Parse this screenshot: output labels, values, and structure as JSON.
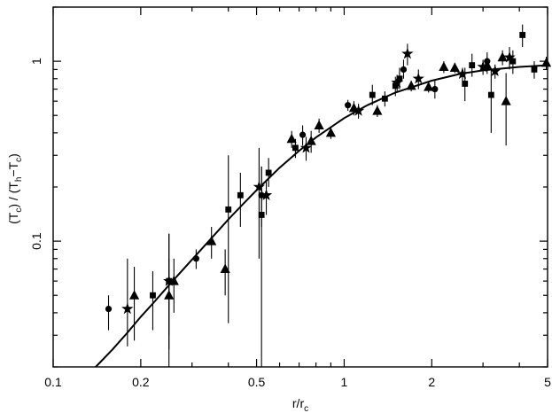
{
  "chart_data": {
    "type": "scatter",
    "title": "",
    "xlabel": {
      "base": "r/r",
      "sub": "c"
    },
    "ylabel": {
      "parts": [
        {
          "t": "(T"
        },
        {
          "t": "c",
          "sub": true
        },
        {
          "t": ") / (T"
        },
        {
          "t": "h",
          "sub": true
        },
        {
          "t": "−T"
        },
        {
          "t": "c",
          "sub": true
        },
        {
          "t": ")"
        }
      ]
    },
    "x_scale": "log",
    "y_scale": "log",
    "xlim": [
      0.1,
      5
    ],
    "ylim": [
      0.02,
      2
    ],
    "x_ticks": [
      0.1,
      0.2,
      0.5,
      1,
      2,
      5
    ],
    "x_tick_labels": [
      "0.1",
      "0.2",
      "0.5",
      "1",
      "2",
      "5"
    ],
    "y_ticks": [
      0.1,
      1
    ],
    "y_tick_labels": [
      "0.1",
      "1"
    ],
    "grid": false,
    "legend": "none",
    "color": "#000000",
    "model_curve": {
      "name": "",
      "x": [
        0.14,
        0.16,
        0.18,
        0.2,
        0.22,
        0.25,
        0.3,
        0.35,
        0.4,
        0.45,
        0.5,
        0.6,
        0.7,
        0.8,
        1.0,
        1.2,
        1.5,
        2.0,
        2.5,
        3.0,
        4.0,
        5.0
      ],
      "y": [
        0.02,
        0.025,
        0.031,
        0.038,
        0.045,
        0.057,
        0.079,
        0.104,
        0.132,
        0.161,
        0.192,
        0.256,
        0.318,
        0.377,
        0.483,
        0.569,
        0.67,
        0.78,
        0.85,
        0.89,
        0.93,
        0.95
      ]
    },
    "series": [
      {
        "marker": "circle",
        "points": [
          {
            "x": 0.155,
            "y": 0.042,
            "ylo": 0.032,
            "yhi": 0.05
          },
          {
            "x": 0.31,
            "y": 0.08,
            "ylo": 0.07,
            "yhi": 0.09
          },
          {
            "x": 0.52,
            "y": 0.18,
            "ylo": 0.12,
            "yhi": 0.26
          },
          {
            "x": 0.72,
            "y": 0.39,
            "ylo": 0.34,
            "yhi": 0.44
          },
          {
            "x": 1.03,
            "y": 0.57,
            "ylo": 0.53,
            "yhi": 0.61
          },
          {
            "x": 1.6,
            "y": 0.9,
            "ylo": 0.8,
            "yhi": 1.02
          },
          {
            "x": 2.05,
            "y": 0.7,
            "ylo": 0.62,
            "yhi": 0.78
          },
          {
            "x": 3.1,
            "y": 1.0,
            "ylo": 0.9,
            "yhi": 1.12
          }
        ]
      },
      {
        "marker": "square",
        "points": [
          {
            "x": 0.22,
            "y": 0.05,
            "ylo": 0.032,
            "yhi": 0.068
          },
          {
            "x": 0.25,
            "y": 0.06,
            "ylo": 0.03,
            "yhi": 0.11
          },
          {
            "x": 0.4,
            "y": 0.15,
            "ylo": 0.035,
            "yhi": 0.3
          },
          {
            "x": 0.44,
            "y": 0.18,
            "ylo": 0.12,
            "yhi": 0.24
          },
          {
            "x": 0.52,
            "y": 0.14,
            "ylo": 0.02,
            "yhi": 0.26
          },
          {
            "x": 0.55,
            "y": 0.24,
            "ylo": 0.2,
            "yhi": 0.29
          },
          {
            "x": 0.68,
            "y": 0.33,
            "ylo": 0.29,
            "yhi": 0.37
          },
          {
            "x": 1.25,
            "y": 0.65,
            "ylo": 0.57,
            "yhi": 0.74
          },
          {
            "x": 1.38,
            "y": 0.62,
            "ylo": 0.56,
            "yhi": 0.68
          },
          {
            "x": 1.5,
            "y": 0.73,
            "ylo": 0.64,
            "yhi": 0.82
          },
          {
            "x": 1.55,
            "y": 0.8,
            "ylo": 0.7,
            "yhi": 0.92
          },
          {
            "x": 2.6,
            "y": 0.75,
            "ylo": 0.6,
            "yhi": 0.92
          },
          {
            "x": 2.75,
            "y": 0.95,
            "ylo": 0.82,
            "yhi": 1.1
          },
          {
            "x": 3.2,
            "y": 0.65,
            "ylo": 0.4,
            "yhi": 0.9
          },
          {
            "x": 3.8,
            "y": 1.0,
            "ylo": 0.85,
            "yhi": 1.15
          },
          {
            "x": 4.1,
            "y": 1.4,
            "ylo": 1.2,
            "yhi": 1.6
          },
          {
            "x": 4.5,
            "y": 0.9,
            "ylo": 0.8,
            "yhi": 1.0
          }
        ]
      },
      {
        "marker": "triangle",
        "points": [
          {
            "x": 0.19,
            "y": 0.05,
            "ylo": 0.028,
            "yhi": 0.072
          },
          {
            "x": 0.25,
            "y": 0.05,
            "ylo": 0.02,
            "yhi": 0.08
          },
          {
            "x": 0.26,
            "y": 0.06,
            "ylo": 0.04,
            "yhi": 0.08
          },
          {
            "x": 0.35,
            "y": 0.1,
            "ylo": 0.08,
            "yhi": 0.12
          },
          {
            "x": 0.39,
            "y": 0.07,
            "ylo": 0.05,
            "yhi": 0.09
          },
          {
            "x": 0.66,
            "y": 0.37,
            "ylo": 0.33,
            "yhi": 0.41
          },
          {
            "x": 0.77,
            "y": 0.36,
            "ylo": 0.31,
            "yhi": 0.41
          },
          {
            "x": 0.82,
            "y": 0.44,
            "ylo": 0.4,
            "yhi": 0.48
          },
          {
            "x": 0.9,
            "y": 0.4,
            "ylo": 0.37,
            "yhi": 0.43
          },
          {
            "x": 1.08,
            "y": 0.55,
            "ylo": 0.5,
            "yhi": 0.6
          },
          {
            "x": 1.3,
            "y": 0.53,
            "ylo": 0.49,
            "yhi": 0.57
          },
          {
            "x": 1.7,
            "y": 0.73,
            "ylo": 0.68,
            "yhi": 0.78
          },
          {
            "x": 1.95,
            "y": 0.72,
            "ylo": 0.67,
            "yhi": 0.77
          },
          {
            "x": 2.2,
            "y": 0.93,
            "ylo": 0.86,
            "yhi": 1.0
          },
          {
            "x": 2.4,
            "y": 0.92,
            "ylo": 0.86,
            "yhi": 0.98
          },
          {
            "x": 3.1,
            "y": 0.95,
            "ylo": 0.85,
            "yhi": 1.05
          },
          {
            "x": 3.5,
            "y": 1.05,
            "ylo": 0.95,
            "yhi": 1.15
          },
          {
            "x": 3.6,
            "y": 0.6,
            "ylo": 0.34,
            "yhi": 0.86
          },
          {
            "x": 4.95,
            "y": 0.98,
            "ylo": 0.9,
            "yhi": 1.06
          }
        ]
      },
      {
        "marker": "star",
        "points": [
          {
            "x": 0.18,
            "y": 0.042,
            "ylo": 0.026,
            "yhi": 0.08
          },
          {
            "x": 0.25,
            "y": 0.06,
            "ylo": 0.025,
            "yhi": 0.11
          },
          {
            "x": 0.51,
            "y": 0.2,
            "ylo": 0.08,
            "yhi": 0.33
          },
          {
            "x": 0.54,
            "y": 0.18,
            "ylo": 0.14,
            "yhi": 0.22
          },
          {
            "x": 0.74,
            "y": 0.33,
            "ylo": 0.28,
            "yhi": 0.38
          },
          {
            "x": 1.12,
            "y": 0.53,
            "ylo": 0.48,
            "yhi": 0.58
          },
          {
            "x": 1.52,
            "y": 0.76,
            "ylo": 0.68,
            "yhi": 0.84
          },
          {
            "x": 1.65,
            "y": 1.1,
            "ylo": 0.95,
            "yhi": 1.25
          },
          {
            "x": 1.8,
            "y": 0.8,
            "ylo": 0.7,
            "yhi": 0.9
          },
          {
            "x": 2.55,
            "y": 0.85,
            "ylo": 0.78,
            "yhi": 0.92
          },
          {
            "x": 3.0,
            "y": 0.93,
            "ylo": 0.84,
            "yhi": 1.02
          },
          {
            "x": 3.3,
            "y": 0.88,
            "ylo": 0.8,
            "yhi": 0.96
          },
          {
            "x": 3.7,
            "y": 1.05,
            "ylo": 0.9,
            "yhi": 1.2
          }
        ]
      }
    ]
  }
}
